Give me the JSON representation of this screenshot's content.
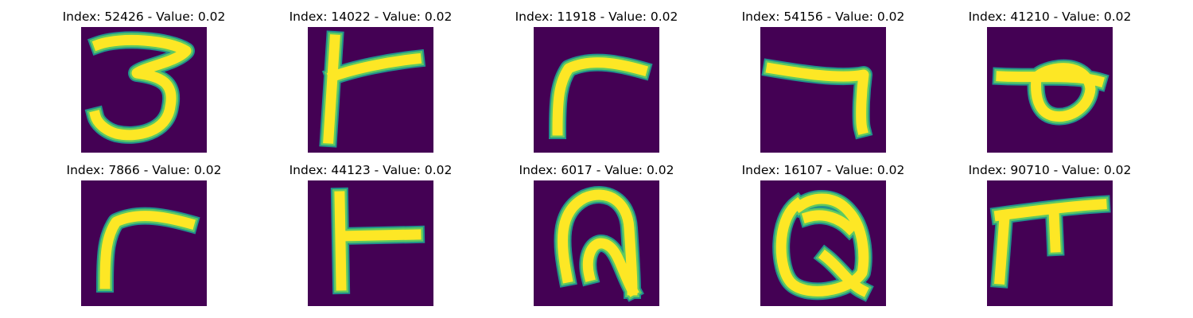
{
  "colors": {
    "background": "#440154",
    "stroke_edge": "#21918c",
    "stroke_mid": "#5ec962",
    "stroke_core": "#fde725",
    "title_text": "#000000"
  },
  "colormap": "viridis",
  "panels": [
    {
      "title": "Index: 52426 - Value: 0.02",
      "glyph": "three"
    },
    {
      "title": "Index: 14022 - Value: 0.02",
      "glyph": "vertical-with-right-arm"
    },
    {
      "title": "Index: 11918 - Value: 0.02",
      "glyph": "bent-r"
    },
    {
      "title": "Index: 54156 - Value: 0.02",
      "glyph": "seven"
    },
    {
      "title": "Index: 41210 - Value: 0.02",
      "glyph": "loop-with-bar"
    },
    {
      "title": "Index: 7866 - Value: 0.02",
      "glyph": "bent-r"
    },
    {
      "title": "Index: 44123 - Value: 0.02",
      "glyph": "t-shape"
    },
    {
      "title": "Index: 6017 - Value: 0.02",
      "glyph": "arch-with-n"
    },
    {
      "title": "Index: 16107 - Value: 0.02",
      "glyph": "q-loop"
    },
    {
      "title": "Index: 90710 - Value: 0.02",
      "glyph": "pi-shape"
    }
  ]
}
